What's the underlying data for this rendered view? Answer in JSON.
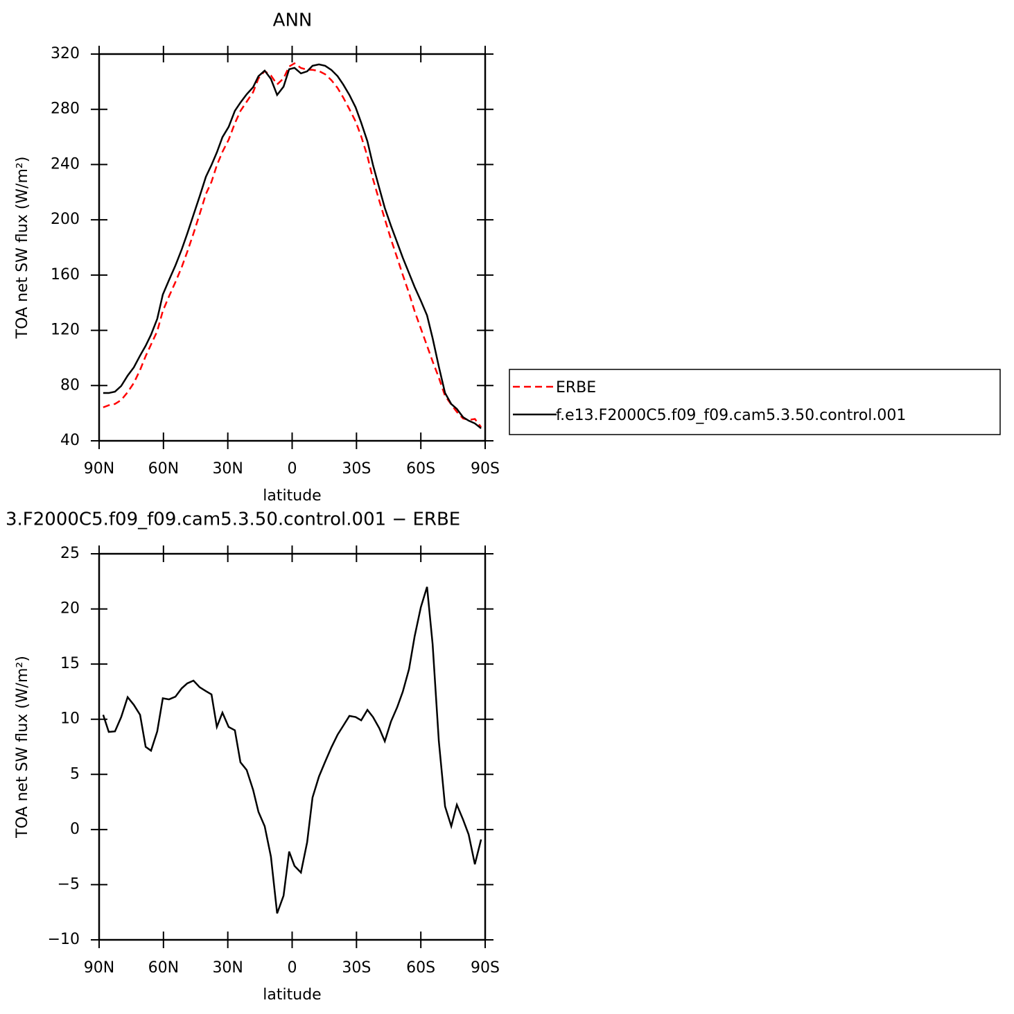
{
  "chart_data": [
    {
      "type": "line",
      "title": "ANN",
      "xlabel": "latitude",
      "ylabel": "TOA net SW flux (W/m²)",
      "x": [
        88.1,
        85.5,
        82.6,
        79.7,
        76.7,
        73.8,
        70.9,
        68.3,
        65.8,
        62.9,
        60.3,
        57.4,
        54.4,
        51.5,
        48.9,
        46.0,
        43.1,
        40.2,
        37.6,
        35.1,
        32.5,
        29.6,
        26.7,
        24.1,
        21.2,
        18.2,
        15.7,
        12.8,
        9.9,
        7.0,
        4.0,
        1.4,
        -1.1,
        -4.1,
        -7.0,
        -9.5,
        -12.5,
        -15.4,
        -18.3,
        -21.2,
        -23.8,
        -26.7,
        -29.6,
        -32.2,
        -35.1,
        -37.7,
        -40.6,
        -43.2,
        -46.1,
        -49.0,
        -51.6,
        -54.5,
        -57.1,
        -60.0,
        -62.9,
        -65.5,
        -68.4,
        -71.3,
        -74.2,
        -76.8,
        -79.7,
        -82.3,
        -85.2,
        -88.1
      ],
      "series": [
        {
          "name": "ERBE",
          "color": "#ff0000",
          "linestyle": "dashed",
          "values": [
            64.2,
            65.75,
            66.7,
            69.5,
            75.2,
            81.9,
            91.3,
            101.3,
            109.7,
            119.4,
            134,
            144.6,
            155,
            165.7,
            176.8,
            190.1,
            204.2,
            218.7,
            227.5,
            239.5,
            249.2,
            258,
            269.9,
            278.8,
            285.5,
            292.4,
            302.4,
            307.7,
            304.5,
            298,
            302.4,
            311,
            313.3,
            309.9,
            308.7,
            308.6,
            307.7,
            305.4,
            301.1,
            295.4,
            288.6,
            280.1,
            271.2,
            260.4,
            246,
            229.5,
            214,
            200.6,
            185.8,
            172.4,
            160,
            146.9,
            133.9,
            121.3,
            108.8,
            97.5,
            85.7,
            72.5,
            66.3,
            60.9,
            56.2,
            55.1,
            55.8,
            49.9
          ]
        },
        {
          "name": "f.e13.F2000C5.f09_f09.cam5.3.50.control.001",
          "color": "#000000",
          "linestyle": "solid",
          "values": [
            74.6,
            74.6,
            75.6,
            79.7,
            87.2,
            93.2,
            101.7,
            108.8,
            116.8,
            128.3,
            145.9,
            156.4,
            167,
            178.5,
            190,
            203.6,
            217.1,
            231.2,
            239.7,
            248.8,
            259.8,
            267.3,
            278.9,
            284.9,
            290.9,
            296,
            304,
            308,
            302,
            290.4,
            296.4,
            309,
            310,
            306,
            307.5,
            311.5,
            312.5,
            311.5,
            308.5,
            304,
            298,
            290.4,
            281.4,
            270.3,
            256.8,
            239.7,
            223.2,
            208.6,
            195.6,
            183.5,
            172.5,
            161.4,
            151.4,
            141.4,
            130.8,
            114.3,
            93.7,
            74.6,
            66.6,
            63.1,
            57.1,
            54.6,
            52.6,
            49
          ]
        }
      ],
      "xlim": [
        90,
        -90
      ],
      "xticks": [
        {
          "value": 90,
          "label": "90N"
        },
        {
          "value": 60,
          "label": "60N"
        },
        {
          "value": 30,
          "label": "30N"
        },
        0,
        {
          "value": -30,
          "label": "30S"
        },
        {
          "value": -60,
          "label": "60S"
        },
        {
          "value": -90,
          "label": "90S"
        }
      ],
      "ylim": [
        40,
        320
      ],
      "yticks": [
        40,
        80,
        120,
        160,
        200,
        240,
        280,
        320
      ],
      "legend": "outside right"
    },
    {
      "type": "line",
      "title": "3.F2000C5.f09_f09.cam5.3.50.control.001 − ERBE",
      "xlabel": "latitude",
      "ylabel": "TOA net SW flux (W/m²)",
      "x": [
        88.1,
        85.5,
        82.6,
        79.7,
        76.7,
        73.8,
        70.9,
        68.3,
        65.8,
        62.9,
        60.3,
        57.4,
        54.4,
        51.5,
        48.9,
        46.0,
        43.1,
        40.2,
        37.6,
        35.1,
        32.5,
        29.6,
        26.7,
        24.1,
        21.2,
        18.2,
        15.7,
        12.8,
        9.9,
        7.0,
        4.0,
        1.4,
        -1.1,
        -4.1,
        -7.0,
        -9.5,
        -12.5,
        -15.4,
        -18.3,
        -21.2,
        -23.8,
        -26.7,
        -29.6,
        -32.2,
        -35.1,
        -37.7,
        -40.6,
        -43.2,
        -46.1,
        -49.0,
        -51.6,
        -54.5,
        -57.1,
        -60.0,
        -62.9,
        -65.5,
        -68.4,
        -71.3,
        -74.2,
        -76.8,
        -79.7,
        -82.3,
        -85.2,
        -88.1
      ],
      "color": "#000000",
      "values": [
        10.4,
        8.85,
        8.9,
        10.2,
        12.0,
        11.3,
        10.4,
        7.5,
        7.15,
        8.9,
        11.9,
        11.8,
        12.05,
        12.8,
        13.25,
        13.5,
        12.9,
        12.55,
        12.25,
        9.3,
        10.6,
        9.3,
        9.0,
        6.1,
        5.4,
        3.6,
        1.6,
        0.3,
        -2.45,
        -7.6,
        -6.0,
        -2.0,
        -3.3,
        -3.9,
        -1.15,
        2.9,
        4.8,
        6.15,
        7.45,
        8.6,
        9.4,
        10.3,
        10.2,
        9.9,
        10.85,
        10.2,
        9.2,
        8.0,
        9.8,
        11.1,
        12.5,
        14.55,
        17.5,
        20.15,
        22.0,
        16.8,
        8.0,
        2.1,
        0.3,
        2.25,
        0.9,
        -0.45,
        -3.15,
        -0.9
      ],
      "xlim": [
        90,
        -90
      ],
      "xticks": [
        {
          "value": 90,
          "label": "90N"
        },
        {
          "value": 60,
          "label": "60N"
        },
        {
          "value": 30,
          "label": "30N"
        },
        0,
        {
          "value": -30,
          "label": "30S"
        },
        {
          "value": -60,
          "label": "60S"
        },
        {
          "value": -90,
          "label": "90S"
        }
      ],
      "ylim": [
        -10,
        25
      ],
      "yticks": [
        {
          "value": -10,
          "label": "−10"
        },
        {
          "value": -5,
          "label": "−5"
        },
        0,
        5,
        10,
        15,
        20,
        25
      ]
    }
  ]
}
